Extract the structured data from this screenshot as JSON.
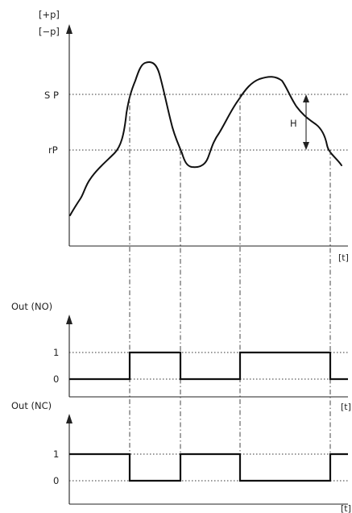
{
  "top_chart": {
    "y_label_plus": "[+p]",
    "y_label_minus": "[−p]",
    "x_label": "[t]",
    "sp_label": "S P",
    "rp_label": "rP",
    "hysteresis_label": "H"
  },
  "out_no_chart": {
    "title": "Out (NO)",
    "level_1": "1",
    "level_0": "0",
    "x_label": "[t]"
  },
  "out_nc_chart": {
    "title": "Out (NC)",
    "level_1": "1",
    "level_0": "0",
    "x_label": "[t]"
  }
}
